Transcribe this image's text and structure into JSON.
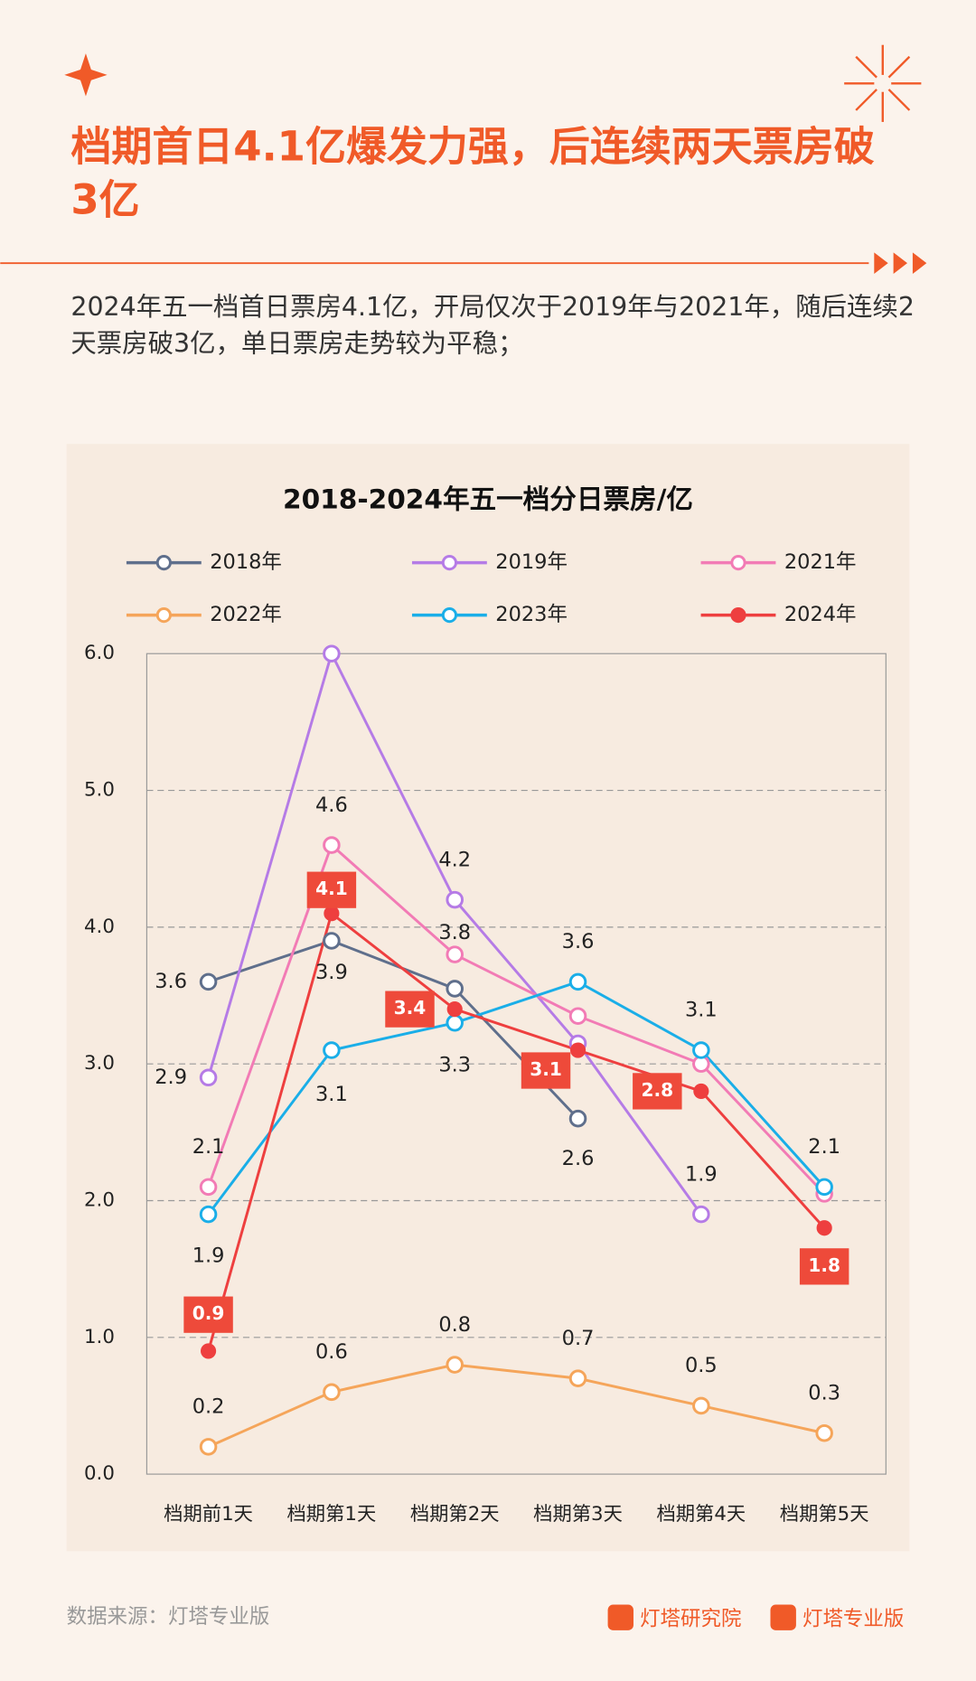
{
  "headline": "档期首日4.1亿爆发力强，后连续两天票房破3亿",
  "description": "2024年五一档首日票房4.1亿，开局仅次于2019年与2021年，随后连续2天票房破3亿，单日票房走势较为平稳；",
  "source": "数据来源：灯塔专业版",
  "brands": [
    "灯塔研究院",
    "灯塔专业版"
  ],
  "chart_data": {
    "type": "line",
    "title": "2018-2024年五一档分日票房/亿",
    "categories": [
      "档期前1天",
      "档期第1天",
      "档期第2天",
      "档期第3天",
      "档期第4天",
      "档期第5天"
    ],
    "series": [
      {
        "name": "2018年",
        "color": "#5f6f8c",
        "values": [
          3.6,
          3.9,
          3.55,
          2.6,
          null,
          null
        ],
        "value_labels": [
          "3.6",
          "3.9",
          null,
          "2.6",
          null,
          null
        ]
      },
      {
        "name": "2019年",
        "color": "#b57be6",
        "values": [
          2.9,
          6.0,
          4.2,
          3.15,
          1.9,
          null
        ],
        "value_labels": [
          "2.9",
          null,
          "4.2",
          null,
          "1.9",
          null
        ]
      },
      {
        "name": "2021年",
        "color": "#f27bb5",
        "values": [
          2.1,
          4.6,
          3.8,
          3.35,
          3.0,
          2.05
        ],
        "value_labels": [
          "2.1",
          "4.6",
          "3.8",
          null,
          null,
          null
        ]
      },
      {
        "name": "2022年",
        "color": "#f5a55a",
        "values": [
          0.2,
          0.6,
          0.8,
          0.7,
          0.5,
          0.3
        ],
        "value_labels": [
          "0.2",
          "0.6",
          "0.8",
          "0.7",
          "0.5",
          "0.3"
        ]
      },
      {
        "name": "2023年",
        "color": "#1aaee8",
        "values": [
          1.9,
          3.1,
          3.3,
          3.6,
          3.1,
          2.1
        ],
        "value_labels": [
          "1.9",
          "3.1",
          "3.3",
          "3.6",
          "3.1",
          "2.1"
        ]
      },
      {
        "name": "2024年",
        "color": "#ee3f3f",
        "values": [
          0.9,
          4.1,
          3.4,
          3.1,
          2.8,
          1.8
        ],
        "value_labels": [
          "0.9",
          "4.1",
          "3.4",
          "3.1",
          "2.8",
          "1.8"
        ]
      }
    ],
    "ylim": [
      0,
      6
    ],
    "yticks": [
      {
        "value": 0,
        "label": "0.0"
      },
      {
        "value": 1,
        "label": "1.0"
      },
      {
        "value": 2,
        "label": "2.0"
      },
      {
        "value": 3,
        "label": "3.0"
      },
      {
        "value": 4,
        "label": "4.0"
      },
      {
        "value": 5,
        "label": "5.0"
      },
      {
        "value": 6,
        "label": "6.0"
      }
    ],
    "grid": true,
    "legend": "top"
  }
}
